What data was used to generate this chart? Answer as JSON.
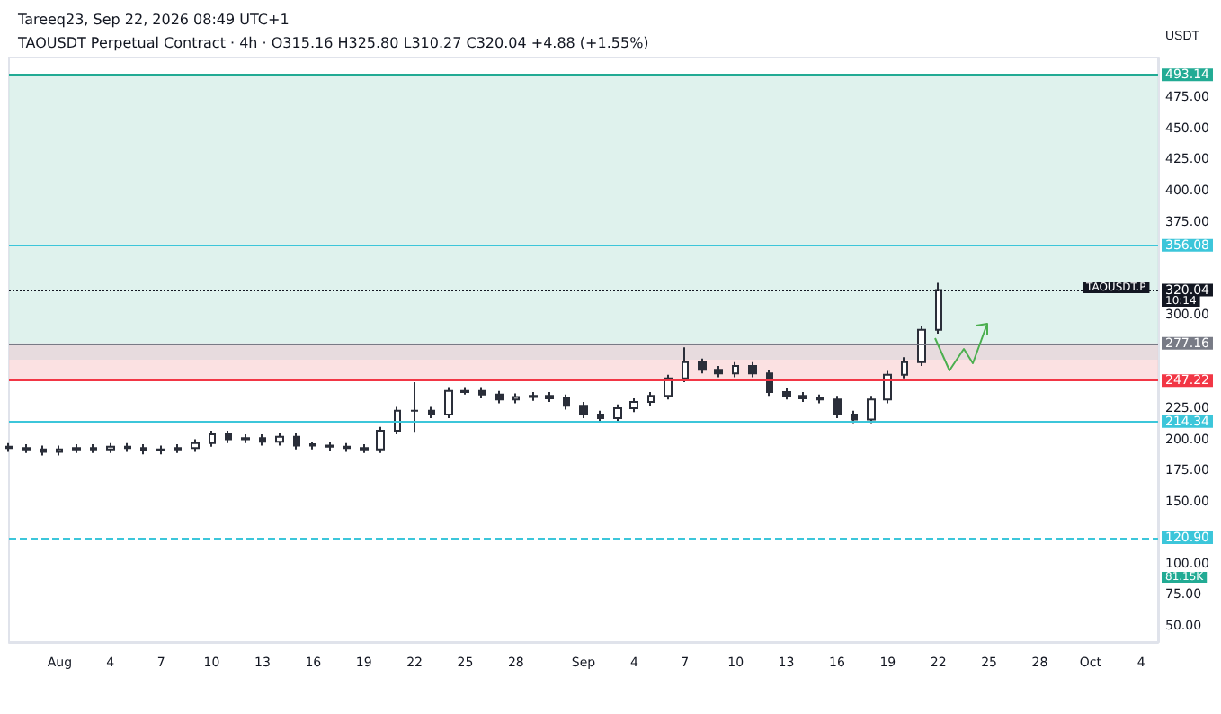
{
  "chart_data": {
    "type": "candlestick",
    "title": "Tareeq23, Sep 22, 2026 08:49 UTC+1",
    "subtitle": "TAOUSDT Perpetual Contract · 4h · O315.16 H325.80 L310.27 C320.04 +4.88 (+1.55%)",
    "ylabel": "USDT",
    "x": [
      "--07-29",
      "--07-30",
      "--07-31",
      "--08-01",
      "--08-02",
      "--08-03",
      "--08-04",
      "--08-05",
      "--08-06",
      "--08-07",
      "--08-08",
      "--08-09",
      "--08-10",
      "--08-11",
      "--08-12",
      "--08-13",
      "--08-14",
      "--08-15",
      "--08-16",
      "--08-17",
      "--08-18",
      "--08-19",
      "--08-20",
      "--08-21",
      "--08-22",
      "--08-23",
      "--08-24",
      "--08-25",
      "--08-26",
      "--08-27",
      "--08-28",
      "--08-29",
      "--08-30",
      "--08-31",
      "--09-01",
      "--09-02",
      "--09-03",
      "--09-04",
      "--09-05",
      "--09-06",
      "--09-07",
      "--09-08",
      "--09-09",
      "--09-10",
      "--09-11",
      "--09-12",
      "--09-13",
      "--09-14",
      "--09-15",
      "--09-16",
      "--09-17",
      "--09-18",
      "--09-19",
      "--09-20",
      "--09-21",
      "--09-22"
    ],
    "ohlc": [
      [
        194,
        197,
        190,
        193
      ],
      [
        193,
        196,
        189,
        192
      ],
      [
        192,
        195,
        187,
        190
      ],
      [
        190,
        195,
        187,
        192
      ],
      [
        192,
        196,
        189,
        193
      ],
      [
        193,
        196,
        189,
        192
      ],
      [
        192,
        197,
        189,
        194
      ],
      [
        194,
        197,
        190,
        193
      ],
      [
        193,
        196,
        188,
        191
      ],
      [
        191,
        195,
        188,
        192
      ],
      [
        192,
        196,
        189,
        193
      ],
      [
        193,
        200,
        190,
        197
      ],
      [
        197,
        207,
        194,
        204
      ],
      [
        204,
        207,
        197,
        200
      ],
      [
        200,
        204,
        197,
        201
      ],
      [
        201,
        204,
        195,
        198
      ],
      [
        198,
        205,
        195,
        202
      ],
      [
        202,
        205,
        192,
        195
      ],
      [
        195,
        198,
        192,
        196
      ],
      [
        195,
        198,
        191,
        194
      ],
      [
        194,
        197,
        190,
        193
      ],
      [
        193,
        196,
        189,
        192
      ],
      [
        192,
        210,
        189,
        207
      ],
      [
        207,
        226,
        204,
        223
      ],
      [
        223,
        246,
        206,
        223
      ],
      [
        223,
        226,
        217,
        220
      ],
      [
        220,
        242,
        217,
        239
      ],
      [
        239,
        242,
        236,
        238
      ],
      [
        239,
        242,
        233,
        236
      ],
      [
        236,
        239,
        229,
        232
      ],
      [
        232,
        237,
        229,
        234
      ],
      [
        234,
        238,
        231,
        235
      ],
      [
        235,
        238,
        230,
        233
      ],
      [
        233,
        236,
        224,
        227
      ],
      [
        227,
        230,
        217,
        220
      ],
      [
        220,
        223,
        214,
        217
      ],
      [
        217,
        228,
        214,
        225
      ],
      [
        225,
        233,
        222,
        230
      ],
      [
        230,
        238,
        227,
        235
      ],
      [
        235,
        252,
        232,
        249
      ],
      [
        249,
        274,
        246,
        262
      ],
      [
        262,
        265,
        253,
        256
      ],
      [
        256,
        259,
        250,
        253
      ],
      [
        253,
        262,
        250,
        259
      ],
      [
        259,
        262,
        250,
        253
      ],
      [
        253,
        256,
        235,
        238
      ],
      [
        238,
        241,
        232,
        235
      ],
      [
        235,
        238,
        230,
        233
      ],
      [
        233,
        236,
        229,
        232
      ],
      [
        232,
        235,
        217,
        220
      ],
      [
        220,
        223,
        213,
        216
      ],
      [
        216,
        235,
        213,
        232
      ],
      [
        232,
        255,
        229,
        252
      ],
      [
        252,
        266,
        249,
        262
      ],
      [
        262,
        291,
        259,
        288
      ],
      [
        288,
        325.8,
        285,
        320.04
      ]
    ],
    "xlim": [
      "--07-29",
      "--10-05"
    ],
    "xticks": [
      {
        "value": "--08-01",
        "label": "Aug"
      },
      {
        "value": "--08-04",
        "label": "4"
      },
      {
        "value": "--08-07",
        "label": "7"
      },
      {
        "value": "--08-10",
        "label": "10"
      },
      {
        "value": "--08-13",
        "label": "13"
      },
      {
        "value": "--08-16",
        "label": "16"
      },
      {
        "value": "--08-19",
        "label": "19"
      },
      {
        "value": "--08-22",
        "label": "22"
      },
      {
        "value": "--08-25",
        "label": "25"
      },
      {
        "value": "--08-28",
        "label": "28"
      },
      {
        "value": "--09-01",
        "label": "Sep"
      },
      {
        "value": "--09-04",
        "label": "4"
      },
      {
        "value": "--09-07",
        "label": "7"
      },
      {
        "value": "--09-10",
        "label": "10"
      },
      {
        "value": "--09-13",
        "label": "13"
      },
      {
        "value": "--09-16",
        "label": "16"
      },
      {
        "value": "--09-19",
        "label": "19"
      },
      {
        "value": "--09-22",
        "label": "22"
      },
      {
        "value": "--09-25",
        "label": "25"
      },
      {
        "value": "--09-28",
        "label": "28"
      },
      {
        "value": "--10-01",
        "label": "Oct"
      },
      {
        "value": "--10-04",
        "label": "4"
      }
    ],
    "ylim": [
      37,
      507
    ],
    "yticks": [
      {
        "value": 50,
        "label": "50.00"
      },
      {
        "value": 75,
        "label": "75.00"
      },
      {
        "value": 100,
        "label": "100.00"
      },
      {
        "value": 150,
        "label": "150.00"
      },
      {
        "value": 175,
        "label": "175.00"
      },
      {
        "value": 200,
        "label": "200.00"
      },
      {
        "value": 225,
        "label": "225.00"
      },
      {
        "value": 300,
        "label": "300.00"
      },
      {
        "value": 375,
        "label": "375.00"
      },
      {
        "value": 400,
        "label": "400.00"
      },
      {
        "value": 425,
        "label": "425.00"
      },
      {
        "value": 450,
        "label": "450.00"
      },
      {
        "value": 475,
        "label": "475.00"
      }
    ],
    "ref_lines": [
      {
        "axis": "y",
        "value": 493.14,
        "label": "493.14",
        "color": "#22ab94"
      },
      {
        "axis": "y",
        "value": 356.08,
        "label": "356.08",
        "color": "#3cc6da"
      },
      {
        "axis": "y",
        "value": 320.04,
        "label": "320.04",
        "color": "#131722",
        "line_style": "dotted"
      },
      {
        "axis": "y",
        "value": 277.16,
        "label": "277.16",
        "color": "#787b86"
      },
      {
        "axis": "y",
        "value": 247.22,
        "label": "247.22",
        "color": "#f23645"
      },
      {
        "axis": "y",
        "value": 214.34,
        "label": "214.34",
        "color": "#3cc6da"
      },
      {
        "axis": "y",
        "value": 120.9,
        "label": "120.90",
        "color": "#3cc6da",
        "line_style": "dashed"
      }
    ],
    "bands": [
      {
        "axis": "y",
        "from": 264,
        "to": 277.16,
        "color": "#9fe0ec"
      },
      {
        "axis": "y",
        "from": 277.16,
        "to": 493.14,
        "color": "#d2ece6"
      },
      {
        "axis": "y",
        "from": 247.22,
        "to": 277.16,
        "color": "#f9d4d6"
      }
    ],
    "annotations": [
      "TAOUSDT.P",
      "10:14",
      "81.15K"
    ]
  }
}
